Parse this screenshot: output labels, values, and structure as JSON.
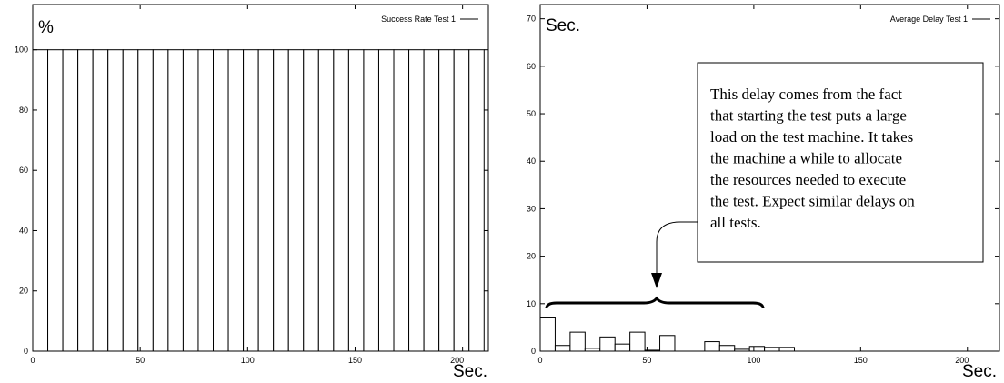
{
  "chart_data": [
    {
      "type": "bar",
      "ylabel": "%",
      "xlabel": "Sec.",
      "xlim": [
        0,
        212
      ],
      "ylim": [
        0,
        115
      ],
      "x_ticks": [
        0,
        50,
        100,
        150,
        200
      ],
      "y_ticks": [
        0,
        20,
        40,
        60,
        80,
        100
      ],
      "bin_width": 7,
      "series": [
        {
          "name": "Success Rate Test 1",
          "x": [
            0,
            7,
            14,
            21,
            28,
            35,
            42,
            49,
            56,
            63,
            70,
            77,
            84,
            91,
            98,
            105,
            112,
            119,
            126,
            133,
            140,
            147,
            154,
            161,
            168,
            175,
            182,
            189,
            196,
            203
          ],
          "values": [
            100,
            100,
            100,
            100,
            100,
            100,
            100,
            100,
            100,
            100,
            100,
            100,
            100,
            100,
            100,
            100,
            100,
            100,
            100,
            100,
            100,
            100,
            100,
            100,
            100,
            100,
            100,
            100,
            100,
            100
          ]
        }
      ]
    },
    {
      "type": "bar",
      "ylabel": "Sec.",
      "xlabel": "Sec.",
      "xlim": [
        0,
        215
      ],
      "ylim": [
        0,
        73
      ],
      "x_ticks": [
        0,
        50,
        100,
        150,
        200
      ],
      "y_ticks": [
        0,
        10,
        20,
        30,
        40,
        50,
        60,
        70
      ],
      "bin_width": 7,
      "series": [
        {
          "name": "Average Delay Test 1",
          "x": [
            0,
            7,
            14,
            21,
            28,
            35,
            42,
            49,
            56,
            63,
            70,
            77,
            84,
            91,
            98,
            105,
            112,
            119,
            126,
            133,
            140,
            147,
            154,
            161,
            168,
            175,
            182,
            189,
            196,
            203
          ],
          "values": [
            7,
            1.2,
            4,
            0.6,
            3,
            1.5,
            4,
            0.2,
            3.3,
            0,
            0,
            2,
            1.2,
            0.4,
            1,
            0.8,
            0.8,
            0,
            0,
            0,
            0,
            0,
            0,
            0,
            0,
            0,
            0,
            0,
            0,
            0
          ]
        }
      ],
      "annotation": "This delay comes from the fact that starting the test puts a large load on the test machine. It takes the machine a while to allocate the resources needed to execute the test. Expect similar delays on all tests.",
      "annotation_lines": [
        "This delay comes from the fact",
        "that starting the test puts a large",
        "load on the test machine.  It takes",
        "the machine a while to allocate",
        "the resources needed to execute",
        "the test.  Expect similar delays on",
        "all tests."
      ]
    }
  ]
}
